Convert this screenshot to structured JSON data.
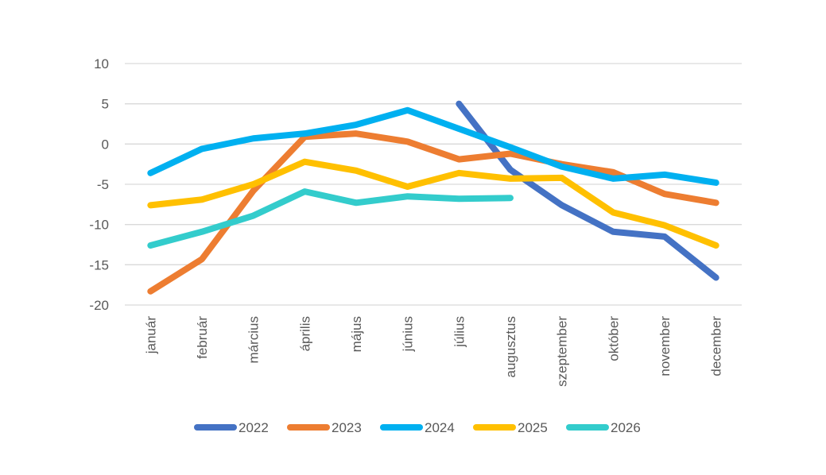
{
  "chart_data": {
    "type": "line",
    "title": "",
    "xlabel": "",
    "ylabel": "",
    "categories": [
      "január",
      "február",
      "március",
      "április",
      "május",
      "június",
      "július",
      "augusztus",
      "szeptember",
      "október",
      "november",
      "december"
    ],
    "ylim": [
      -20,
      10
    ],
    "yticks": [
      10,
      5,
      0,
      -5,
      -10,
      -15,
      -20
    ],
    "grid": true,
    "legend_position": "bottom",
    "series": [
      {
        "name": "2022",
        "color": "#4472c4",
        "values": [
          null,
          null,
          null,
          null,
          null,
          null,
          5,
          -3.2,
          -7.6,
          -10.9,
          -11.5,
          -16.6
        ]
      },
      {
        "name": "2023",
        "color": "#ed7d31",
        "values": [
          -18.3,
          -14.3,
          -5.8,
          0.9,
          1.3,
          0.3,
          -1.9,
          -1.2,
          -2.5,
          -3.5,
          -6.2,
          -7.3
        ]
      },
      {
        "name": "2024",
        "color": "#00b0f0",
        "values": [
          -3.6,
          -0.6,
          0.7,
          1.3,
          2.4,
          4.2,
          1.9,
          -0.4,
          -2.8,
          -4.3,
          -3.8,
          -4.8
        ]
      },
      {
        "name": "2025",
        "color": "#ffc000",
        "values": [
          -7.6,
          -6.9,
          -5.0,
          -2.2,
          -3.3,
          -5.3,
          -3.6,
          -4.3,
          -4.2,
          -8.5,
          -10.1,
          -12.6
        ]
      },
      {
        "name": "2026",
        "color": "#33cccc",
        "values": [
          -12.6,
          -10.9,
          -8.9,
          -5.9,
          -7.3,
          -6.5,
          -6.8,
          -6.7,
          null,
          null,
          null,
          null
        ]
      }
    ]
  }
}
